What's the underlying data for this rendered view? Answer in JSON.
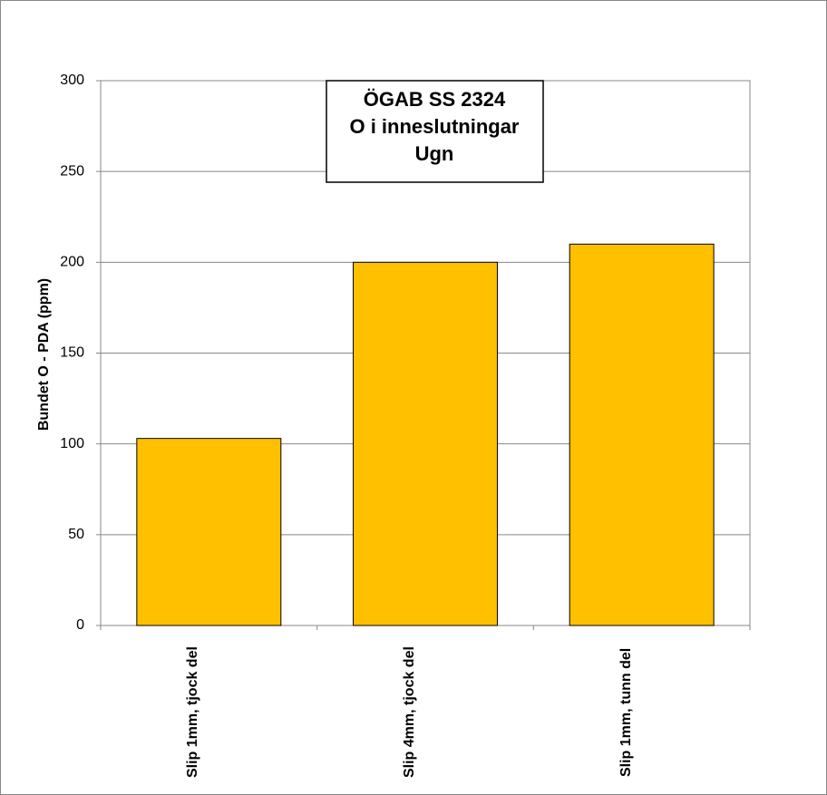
{
  "chart_data": {
    "type": "bar",
    "title": [
      "ÖGAB SS 2324",
      "O i inneslutningar",
      "Ugn"
    ],
    "y_label": "Bundet O - PDA (ppm)",
    "categories": [
      "Slip 1mm, tjock del",
      "Slip 4mm,  tjock del",
      "Slip 1mm,  tunn del"
    ],
    "values": [
      103,
      200,
      210
    ],
    "color": "#ffc000",
    "ylim": [
      0,
      300
    ],
    "yticks": [
      0,
      50,
      100,
      150,
      200,
      250,
      300
    ],
    "grid": true
  }
}
